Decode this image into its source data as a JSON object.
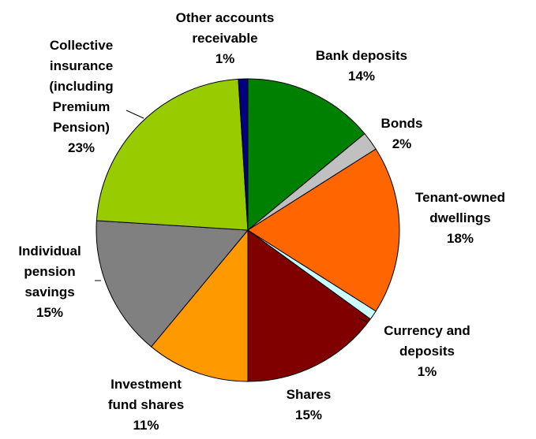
{
  "chart_data": {
    "type": "pie",
    "title": "",
    "unit": "%",
    "slices": [
      {
        "label_lines": [
          "Bank deposits"
        ],
        "value": 14,
        "value_label": "14%",
        "color": "#008000"
      },
      {
        "label_lines": [
          "Bonds"
        ],
        "value": 2,
        "value_label": "2%",
        "color": "#C0C0C0"
      },
      {
        "label_lines": [
          "Tenant-owned",
          "dwellings"
        ],
        "value": 18,
        "value_label": "18%",
        "color": "#FF6600"
      },
      {
        "label_lines": [
          "Currency and",
          "deposits"
        ],
        "value": 1,
        "value_label": "1%",
        "color": "#CCFFFF"
      },
      {
        "label_lines": [
          "Shares"
        ],
        "value": 15,
        "value_label": "15%",
        "color": "#800000"
      },
      {
        "label_lines": [
          "Investment",
          "fund shares"
        ],
        "value": 11,
        "value_label": "11%",
        "color": "#FF9900"
      },
      {
        "label_lines": [
          "Individual",
          "pension",
          "savings"
        ],
        "value": 15,
        "value_label": "15%",
        "color": "#808080"
      },
      {
        "label_lines": [
          "Collective",
          "insurance",
          "(including",
          "Premium",
          "Pension)"
        ],
        "value": 23,
        "value_label": "23%",
        "color": "#99CC00"
      },
      {
        "label_lines": [
          "Other accounts",
          "receivable"
        ],
        "value": 1,
        "value_label": "1%",
        "color": "#000080"
      }
    ]
  }
}
